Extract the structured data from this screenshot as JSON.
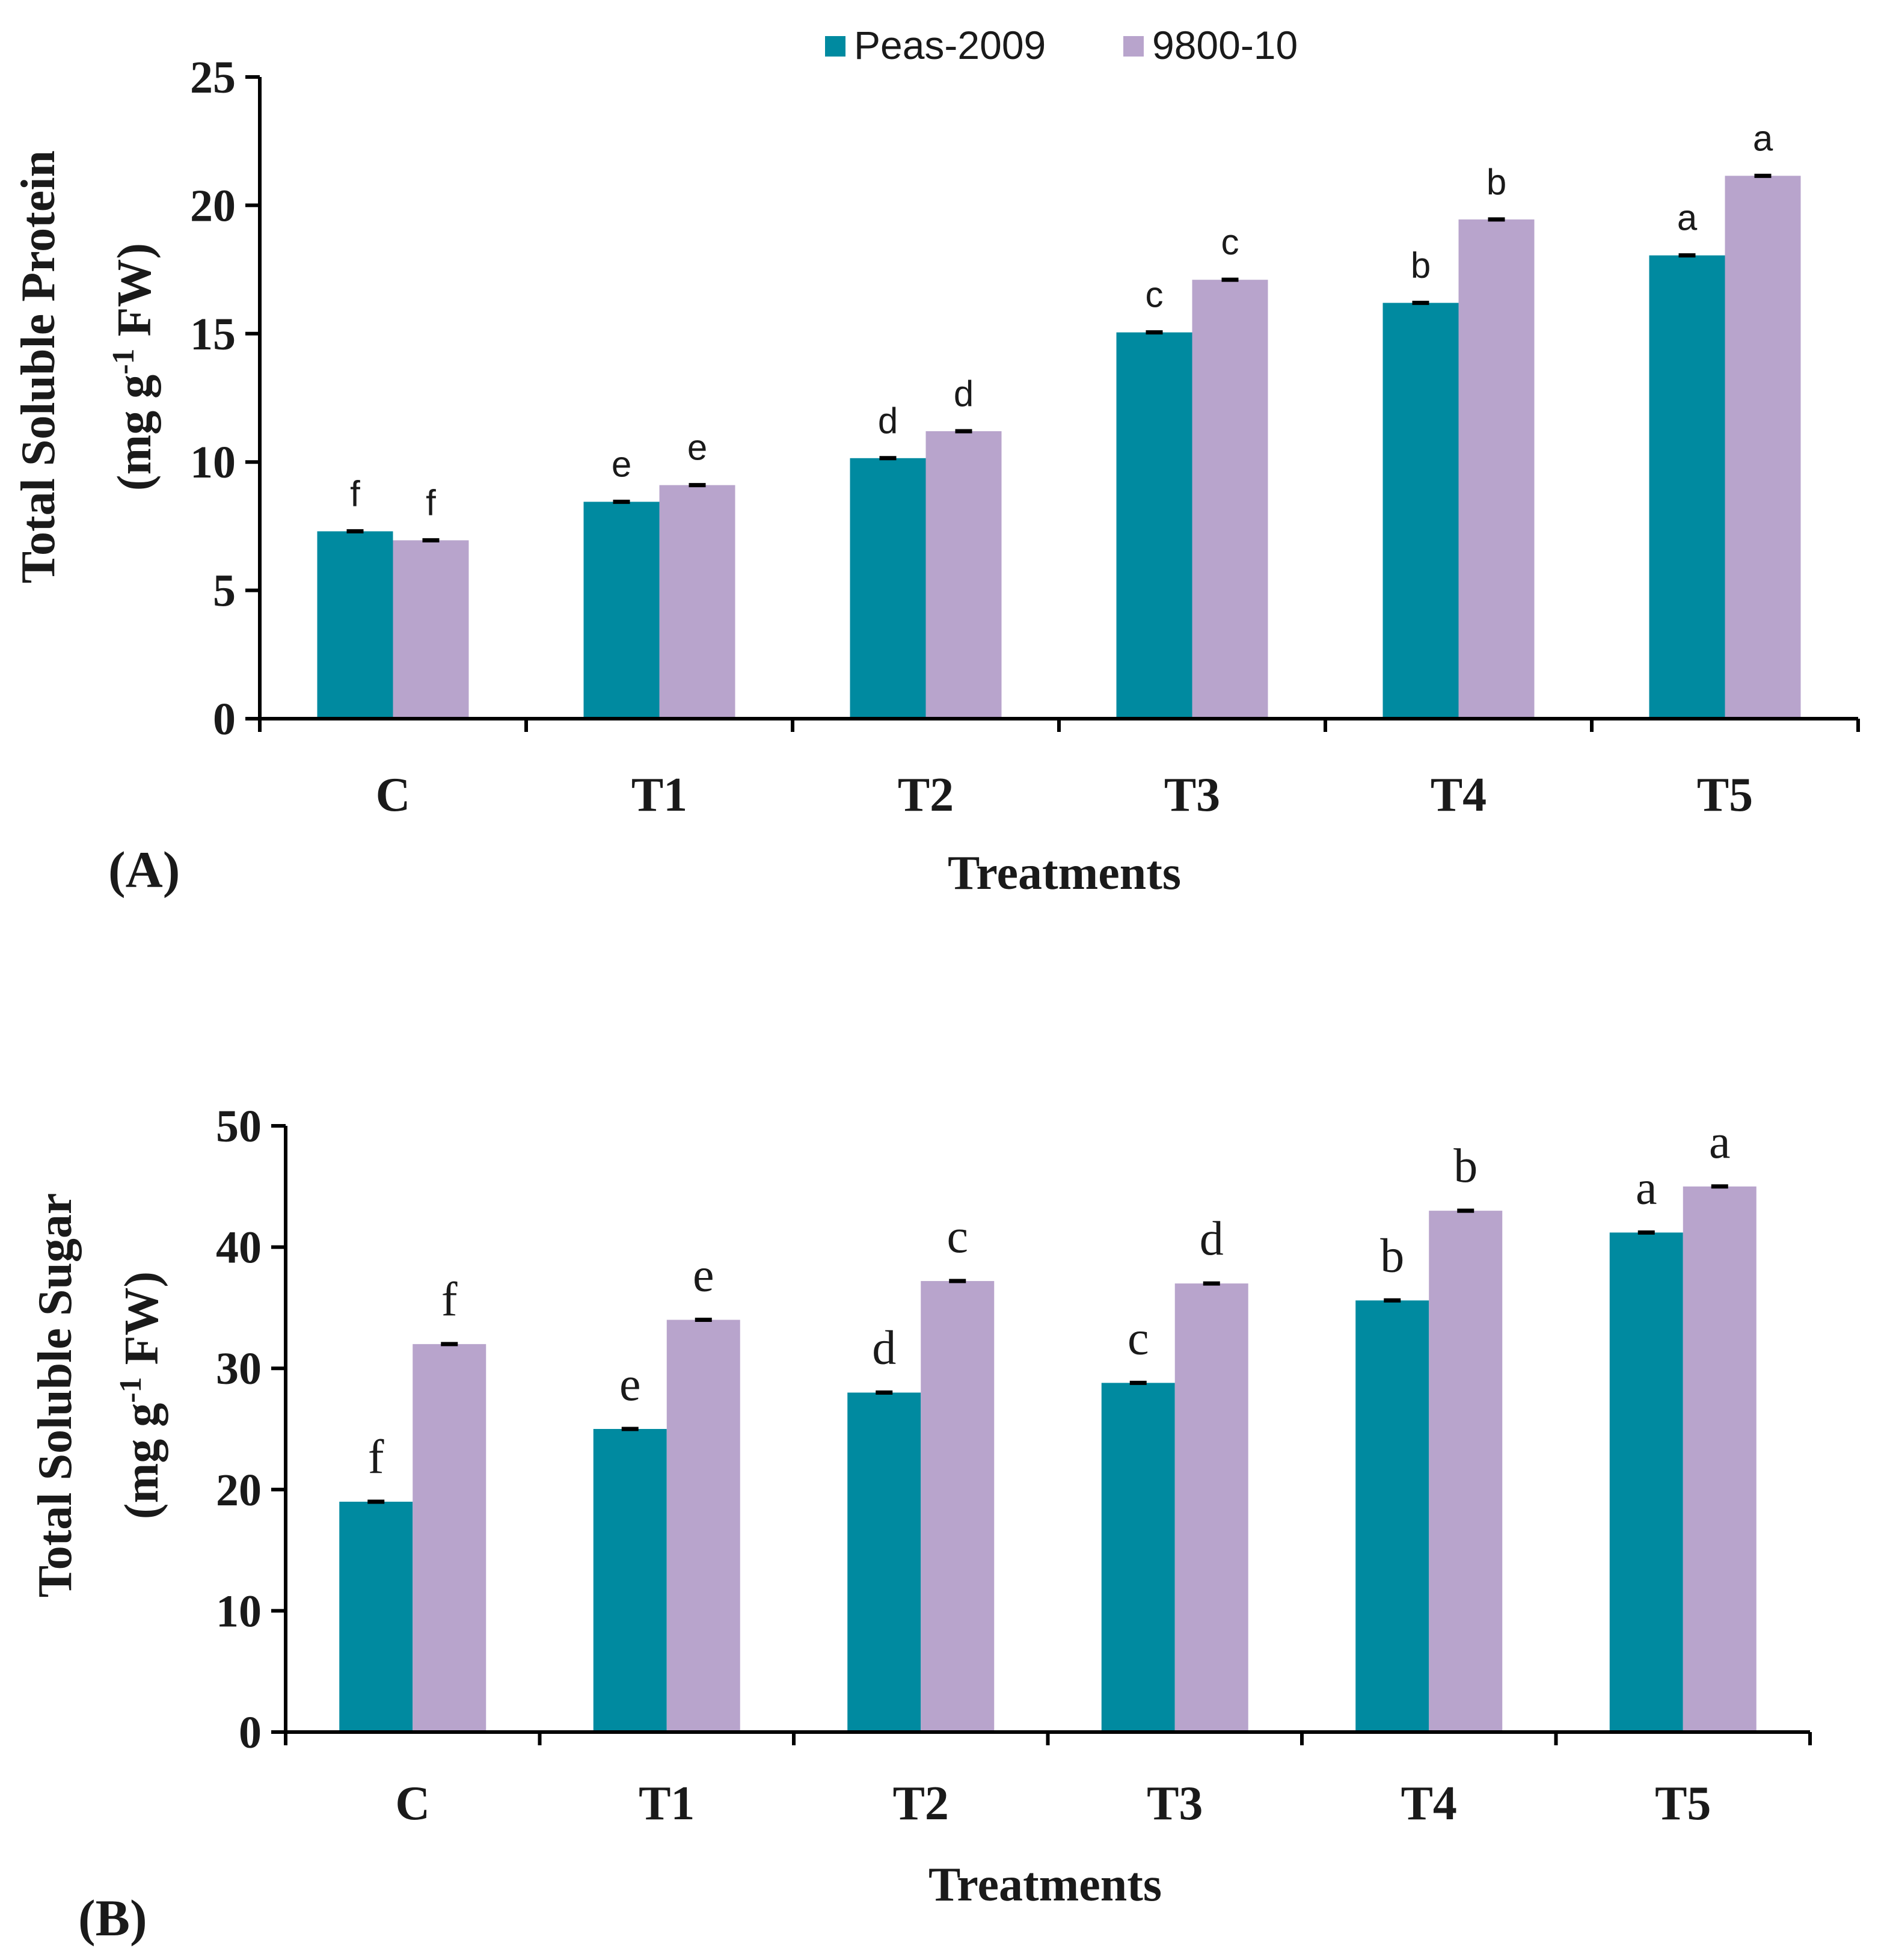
{
  "legend": {
    "items": [
      {
        "name": "Peas-2009",
        "color": "#008aa0"
      },
      {
        "name": "9800-10",
        "color": "#b8a4cc"
      }
    ]
  },
  "chart_data": [
    {
      "type": "bar",
      "panel_label": "(A)",
      "title": "",
      "xlabel": "Treatments",
      "ylabel_line1": "Total Soluble Protein",
      "ylabel_line2": "(mg g-1 FW)",
      "ylim": [
        0,
        25
      ],
      "yticks": [
        0,
        5,
        10,
        15,
        20,
        25
      ],
      "categories": [
        "C",
        "T1",
        "T2",
        "T3",
        "T4",
        "T5"
      ],
      "series": [
        {
          "name": "Peas-2009",
          "color": "#008aa0",
          "values": [
            7.3,
            8.45,
            10.15,
            15.05,
            16.2,
            18.05
          ],
          "letters": [
            "f",
            "e",
            "d",
            "c",
            "b",
            "a"
          ]
        },
        {
          "name": "9800-10",
          "color": "#b8a4cc",
          "values": [
            6.95,
            9.1,
            11.2,
            17.1,
            19.45,
            21.15
          ],
          "letters": [
            "f",
            "e",
            "d",
            "c",
            "b",
            "a"
          ]
        }
      ]
    },
    {
      "type": "bar",
      "panel_label": "(B)",
      "title": "",
      "xlabel": "Treatments",
      "ylabel_line1": "Total Soluble Sugar",
      "ylabel_line2": "(mg g-1 FW)",
      "ylim": [
        0,
        50
      ],
      "yticks": [
        0,
        10,
        20,
        30,
        40,
        50
      ],
      "categories": [
        "C",
        "T1",
        "T2",
        "T3",
        "T4",
        "T5"
      ],
      "series": [
        {
          "name": "Peas-2009",
          "color": "#008aa0",
          "values": [
            19.0,
            25.0,
            28.0,
            28.8,
            35.6,
            41.2
          ],
          "letters": [
            "f",
            "e",
            "d",
            "c",
            "b",
            "a"
          ]
        },
        {
          "name": "9800-10",
          "color": "#b8a4cc",
          "values": [
            32.0,
            34.0,
            37.2,
            37.0,
            43.0,
            45.0
          ],
          "letters": [
            "f",
            "e",
            "c",
            "d",
            "b",
            "a"
          ]
        }
      ]
    }
  ]
}
